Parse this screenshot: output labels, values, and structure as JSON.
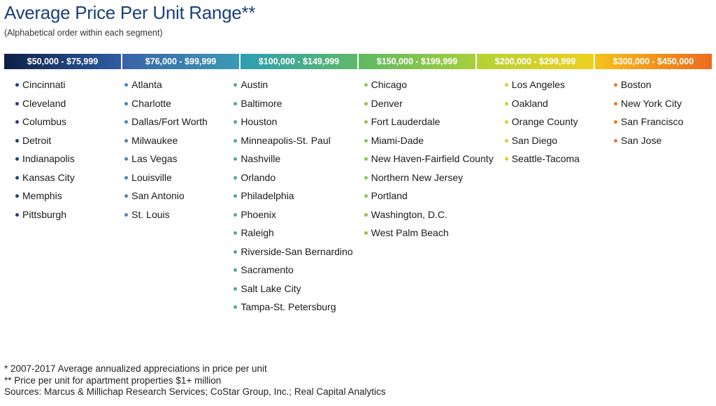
{
  "title": "Average Price Per Unit Range**",
  "subtitle": "(Alphabetical order within each segment)",
  "segments": [
    {
      "label": "$50,000  - $75,999",
      "gradient": [
        "#0d1f45",
        "#2f5da3"
      ],
      "bullet_color": "#1f3f7f",
      "cities": [
        "Cincinnati",
        "Cleveland",
        "Columbus",
        "Detroit",
        "Indianapolis",
        "Kansas City",
        "Memphis",
        "Pittsburgh"
      ]
    },
    {
      "label": "$76,000 - $99,999",
      "gradient": [
        "#3a62a8",
        "#3a9bb5"
      ],
      "bullet_color": "#4a86b8",
      "cities": [
        "Atlanta",
        "Charlotte",
        "Dallas/Fort Worth",
        "Milwaukee",
        "Las Vegas",
        "Louisville",
        "San Antonio",
        "St. Louis"
      ]
    },
    {
      "label": "$100,000 - $149,999",
      "gradient": [
        "#2c9fb2",
        "#5fb86a"
      ],
      "bullet_color": "#4fa89a",
      "cities": [
        "Austin",
        "Baltimore",
        "Houston",
        "Minneapolis-St. Paul",
        "Nashville",
        "Orlando",
        "Philadelphia",
        "Phoenix",
        "Raleigh",
        "Riverside-San Bernardino",
        "Sacramento",
        "Salt Lake City",
        "Tampa-St. Petersburg"
      ]
    },
    {
      "label": "$150,000 - $199,999",
      "gradient": [
        "#5db963",
        "#a8cf3b"
      ],
      "bullet_color": "#8cc54a",
      "cities": [
        "Chicago",
        "Denver",
        "Fort Lauderdale",
        "Miami-Dade",
        "New Haven-Fairfield County",
        "Northern New Jersey",
        "Portland",
        "Washington, D.C.",
        "West Palm Beach"
      ]
    },
    {
      "label": "$200,000 - $299,999",
      "gradient": [
        "#b2d235",
        "#f0d020"
      ],
      "bullet_color": "#e2c92a",
      "cities": [
        "Los Angeles",
        "Oakland",
        "Orange County",
        "San Diego",
        "Seattle-Tacoma"
      ]
    },
    {
      "label": "$300,000 -  $450,000",
      "gradient": [
        "#f5c21a",
        "#ec6a1e"
      ],
      "bullet_color": "#ec7a22",
      "cities": [
        "Boston",
        "New York City",
        "San Francisco",
        "San Jose"
      ]
    }
  ],
  "footnotes": [
    "* 2007-2017 Average annualized appreciations in price per unit",
    "** Price per unit for apartment properties $1+ million",
    "Sources: Marcus & Millichap Research Services; CoStar Group, Inc.; Real Capital Analytics"
  ]
}
